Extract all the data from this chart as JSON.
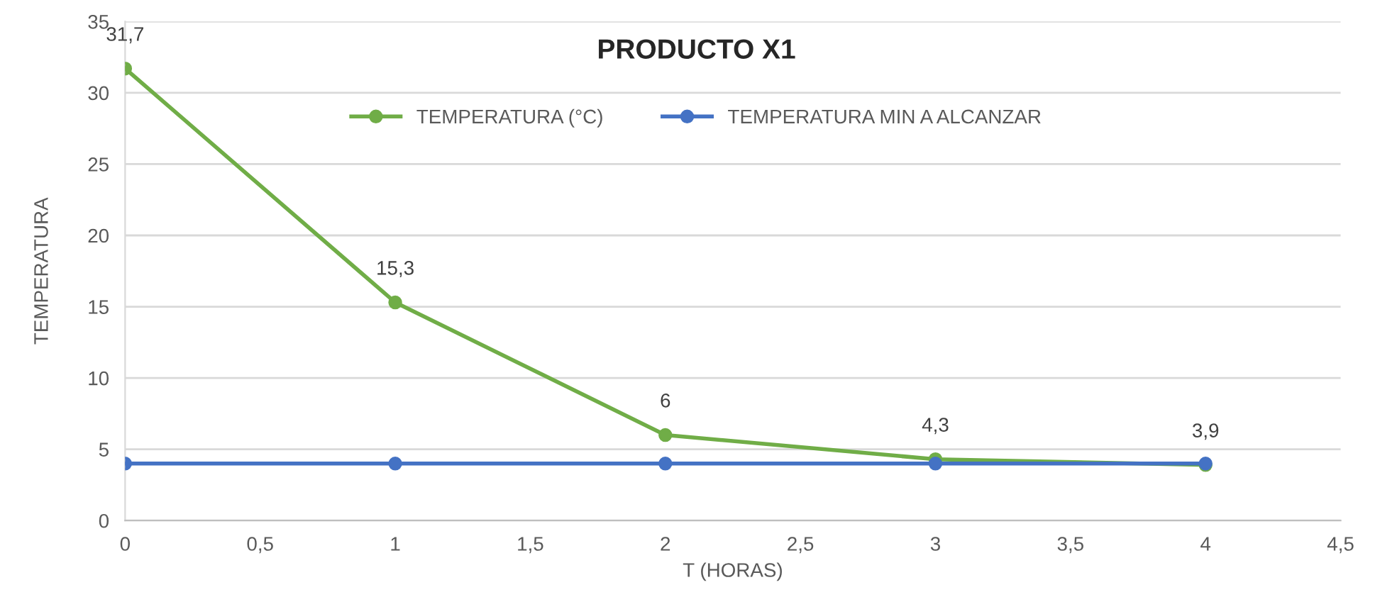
{
  "chart_data": {
    "type": "line",
    "title": "PRODUCTO X1",
    "xlabel": "T (HORAS)",
    "ylabel": "TEMPERATURA",
    "x": [
      0,
      1,
      2,
      3,
      4
    ],
    "series": [
      {
        "name": "TEMPERATURA (°C)",
        "color": "#70ad47",
        "values": [
          31.7,
          15.3,
          6,
          4.3,
          3.9
        ],
        "value_labels": [
          "31,7",
          "15,3",
          "6",
          "4,3",
          "3,9"
        ]
      },
      {
        "name": "TEMPERATURA MIN A ALCANZAR",
        "color": "#4472c4",
        "values": [
          4,
          4,
          4,
          4,
          4
        ]
      }
    ],
    "xlim": [
      0,
      4.5
    ],
    "xticks": [
      0,
      {
        "value": 0.5,
        "label": "0,5"
      },
      1,
      {
        "value": 1.5,
        "label": "1,5"
      },
      2,
      {
        "value": 2.5,
        "label": "2,5"
      },
      3,
      {
        "value": 3.5,
        "label": "3,5"
      },
      4,
      {
        "value": 4.5,
        "label": "4,5"
      }
    ],
    "ylim": [
      0,
      35
    ],
    "yticks": [
      0,
      5,
      10,
      15,
      20,
      25,
      30,
      35
    ],
    "grid": "y",
    "legend": "top",
    "marker": "circle",
    "line_style": "solid"
  }
}
